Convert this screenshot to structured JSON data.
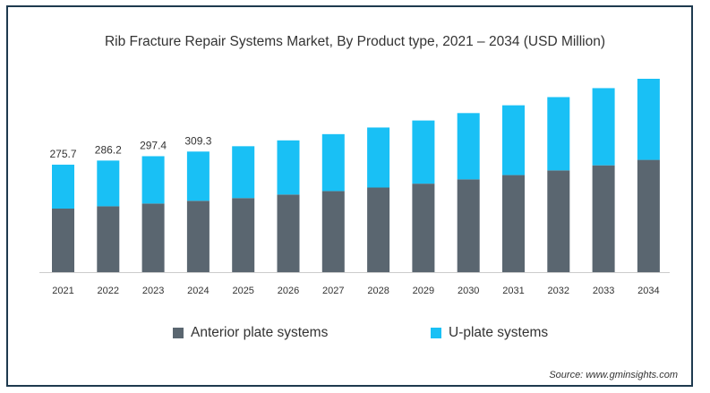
{
  "chart_data": {
    "type": "bar",
    "stacked": true,
    "title": "Rib Fracture Repair Systems Market, By Product type, 2021 – 2034 (USD Million)",
    "categories": [
      "2021",
      "2022",
      "2023",
      "2024",
      "2025",
      "2026",
      "2027",
      "2028",
      "2029",
      "2030",
      "2031",
      "2032",
      "2033",
      "2034"
    ],
    "series": [
      {
        "name": "Anterior plate systems",
        "color": "#5a6670",
        "values": [
          163,
          169,
          176,
          183,
          190,
          199,
          208,
          217,
          227,
          238,
          249,
          261,
          274,
          288
        ]
      },
      {
        "name": "U-plate systems",
        "color": "#19c0f5",
        "values": [
          112.7,
          117.2,
          121.4,
          126.3,
          133,
          139,
          146,
          154,
          162,
          170,
          179,
          188,
          198,
          208
        ]
      }
    ],
    "totals_labels": [
      "275.7",
      "286.2",
      "297.4",
      "309.3"
    ],
    "ylim": [
      0,
      500
    ],
    "legend": "bottom",
    "grid": false
  },
  "source": "Source: www.gminsights.com"
}
